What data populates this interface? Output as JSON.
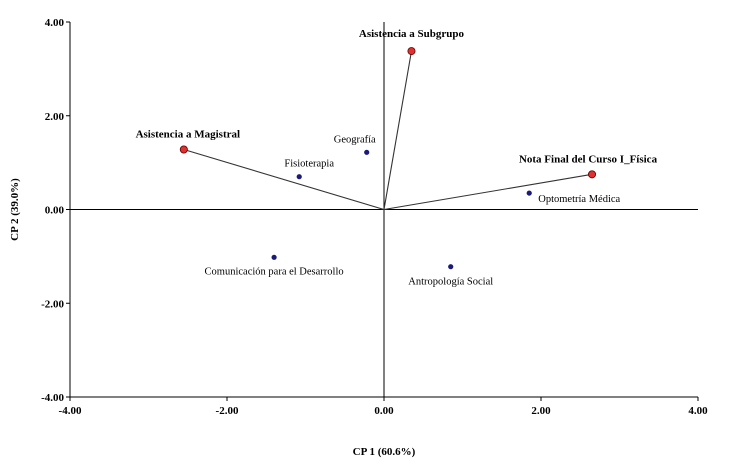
{
  "chart_data": {
    "type": "scatter",
    "subtype": "biplot",
    "xlabel": "CP 1 (60.6%)",
    "ylabel": "CP 2 (39.0%)",
    "xlim": [
      -4.0,
      4.0
    ],
    "ylim": [
      -4.0,
      4.0
    ],
    "xticks": [
      -4.0,
      -2.0,
      0.0,
      2.0,
      4.0
    ],
    "yticks": [
      -4.0,
      -2.0,
      0.0,
      2.0,
      4.0
    ],
    "xtick_labels": [
      "-4.00",
      "-2.00",
      "0.00",
      "2.00",
      "4.00"
    ],
    "ytick_labels": [
      "-4.00",
      "-2.00",
      "0.00",
      "2.00",
      "4.00"
    ],
    "variables": [
      {
        "name": "Asistencia a Subgrupo",
        "x": 0.35,
        "y": 3.38,
        "color": "#e03030"
      },
      {
        "name": "Asistencia a Magistral",
        "x": -2.55,
        "y": 1.28,
        "color": "#e03030"
      },
      {
        "name": "Nota Final del Curso I_Física",
        "x": 2.65,
        "y": 0.75,
        "color": "#e03030"
      }
    ],
    "observations": [
      {
        "name": "Geografía",
        "x": -0.22,
        "y": 1.22,
        "color": "#1a1a7a"
      },
      {
        "name": "Fisioterapia",
        "x": -1.08,
        "y": 0.7,
        "color": "#1a1a7a"
      },
      {
        "name": "Optometría Médica",
        "x": 1.85,
        "y": 0.35,
        "color": "#1a1a7a"
      },
      {
        "name": "Comunicación para el Desarrollo",
        "x": -1.4,
        "y": -1.02,
        "color": "#1a1a7a"
      },
      {
        "name": "Antropología Social",
        "x": 0.85,
        "y": -1.22,
        "color": "#1a1a7a"
      }
    ]
  }
}
